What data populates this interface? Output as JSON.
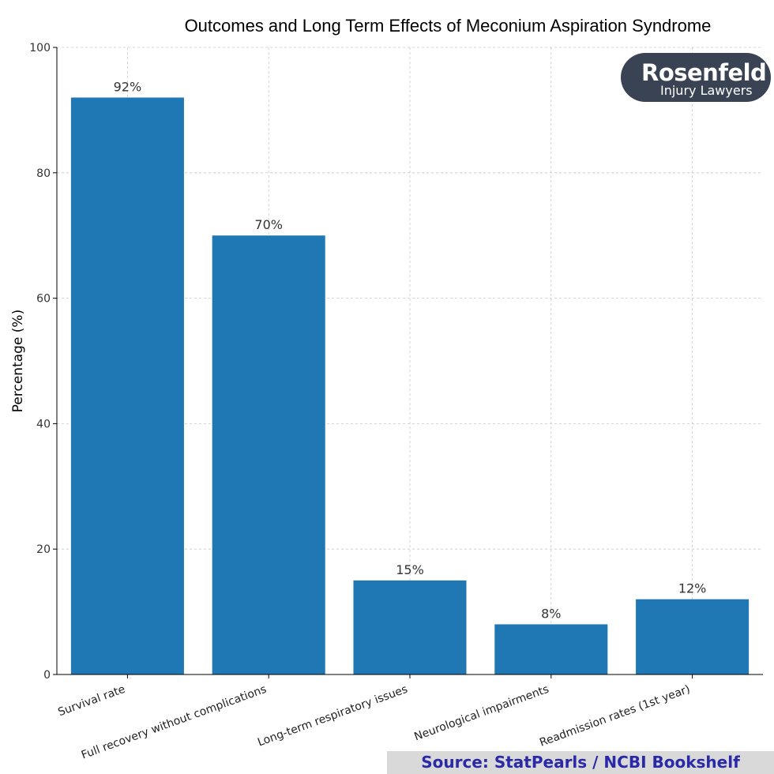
{
  "chart_data": {
    "type": "bar",
    "title": "Outcomes and Long Term Effects of Meconium Aspiration Syndrome",
    "xlabel": "",
    "ylabel": "Percentage (%)",
    "ylim": [
      0,
      100
    ],
    "yticks": [
      0,
      20,
      40,
      60,
      80,
      100
    ],
    "grid": true,
    "categories": [
      "Survival rate",
      "Full recovery without complications",
      "Long-term respiratory issues",
      "Neurological impairments",
      "Readmission rates (1st year)"
    ],
    "values": [
      92,
      70,
      15,
      8,
      12
    ],
    "data_labels": [
      "92%",
      "70%",
      "15%",
      "8%",
      "12%"
    ],
    "bar_color": "#1f77b4"
  },
  "logo": {
    "name": "Rosenfeld",
    "subtitle": "Injury Lawyers"
  },
  "source": {
    "text": "Source:  StatPearls / NCBI Bookshelf"
  }
}
